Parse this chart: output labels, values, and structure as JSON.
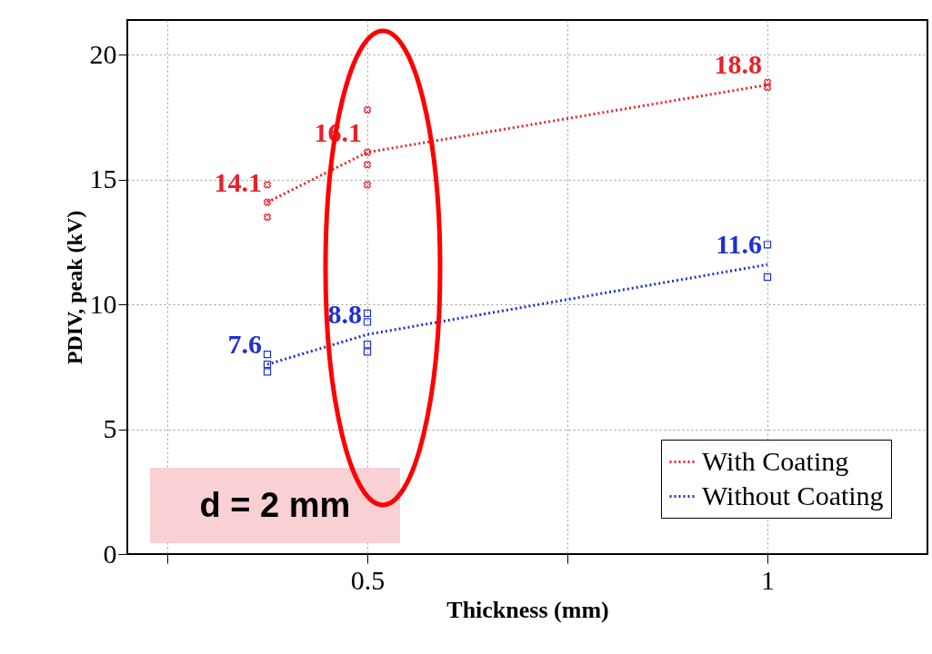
{
  "chart_data": {
    "type": "line",
    "xlabel": "Thickness (mm)",
    "ylabel": "PDIV, peak (kV)",
    "xlim": [
      0.2,
      1.2
    ],
    "xticks": [
      {
        "value": 0.25,
        "label": null
      },
      0.5,
      {
        "value": 0.75,
        "label": null
      },
      1
    ],
    "ylim": [
      0,
      21.4
    ],
    "yticks": [
      0,
      5,
      10,
      15,
      20
    ],
    "grid": true,
    "legend": "bottom right",
    "annotations": [
      "d = 2 mm"
    ],
    "series": [
      {
        "name": "With Coating",
        "color": "#e8202a",
        "line_style": "dotted",
        "x": [
          0.375,
          0.5,
          1
        ],
        "values": [
          14.1,
          16.1,
          18.8
        ],
        "value_labels": [
          "14.1",
          "16.1",
          "18.8"
        ]
      },
      {
        "name": "Without Coating",
        "color": "#2030d0",
        "line_style": "dotted",
        "x": [
          0.375,
          0.5,
          1
        ],
        "values": [
          7.6,
          8.8,
          11.6
        ],
        "value_labels": [
          "7.6",
          "8.8",
          "11.6"
        ]
      },
      {
        "type": "scatter",
        "color": "#e8202a",
        "marker": "cross",
        "x": [
          0.375,
          0.375,
          0.375,
          0.5,
          0.5,
          0.5,
          0.5,
          1,
          1
        ],
        "values": [
          14.8,
          14.1,
          13.5,
          17.8,
          16.1,
          15.6,
          14.8,
          18.9,
          18.7
        ]
      },
      {
        "type": "scatter",
        "color": "#2030d0",
        "marker": "square",
        "x": [
          0.375,
          0.375,
          0.375,
          0.5,
          0.5,
          0.5,
          0.5,
          1,
          1
        ],
        "values": [
          8.0,
          7.6,
          7.3,
          9.65,
          9.3,
          8.4,
          8.1,
          12.4,
          11.1
        ]
      }
    ]
  }
}
